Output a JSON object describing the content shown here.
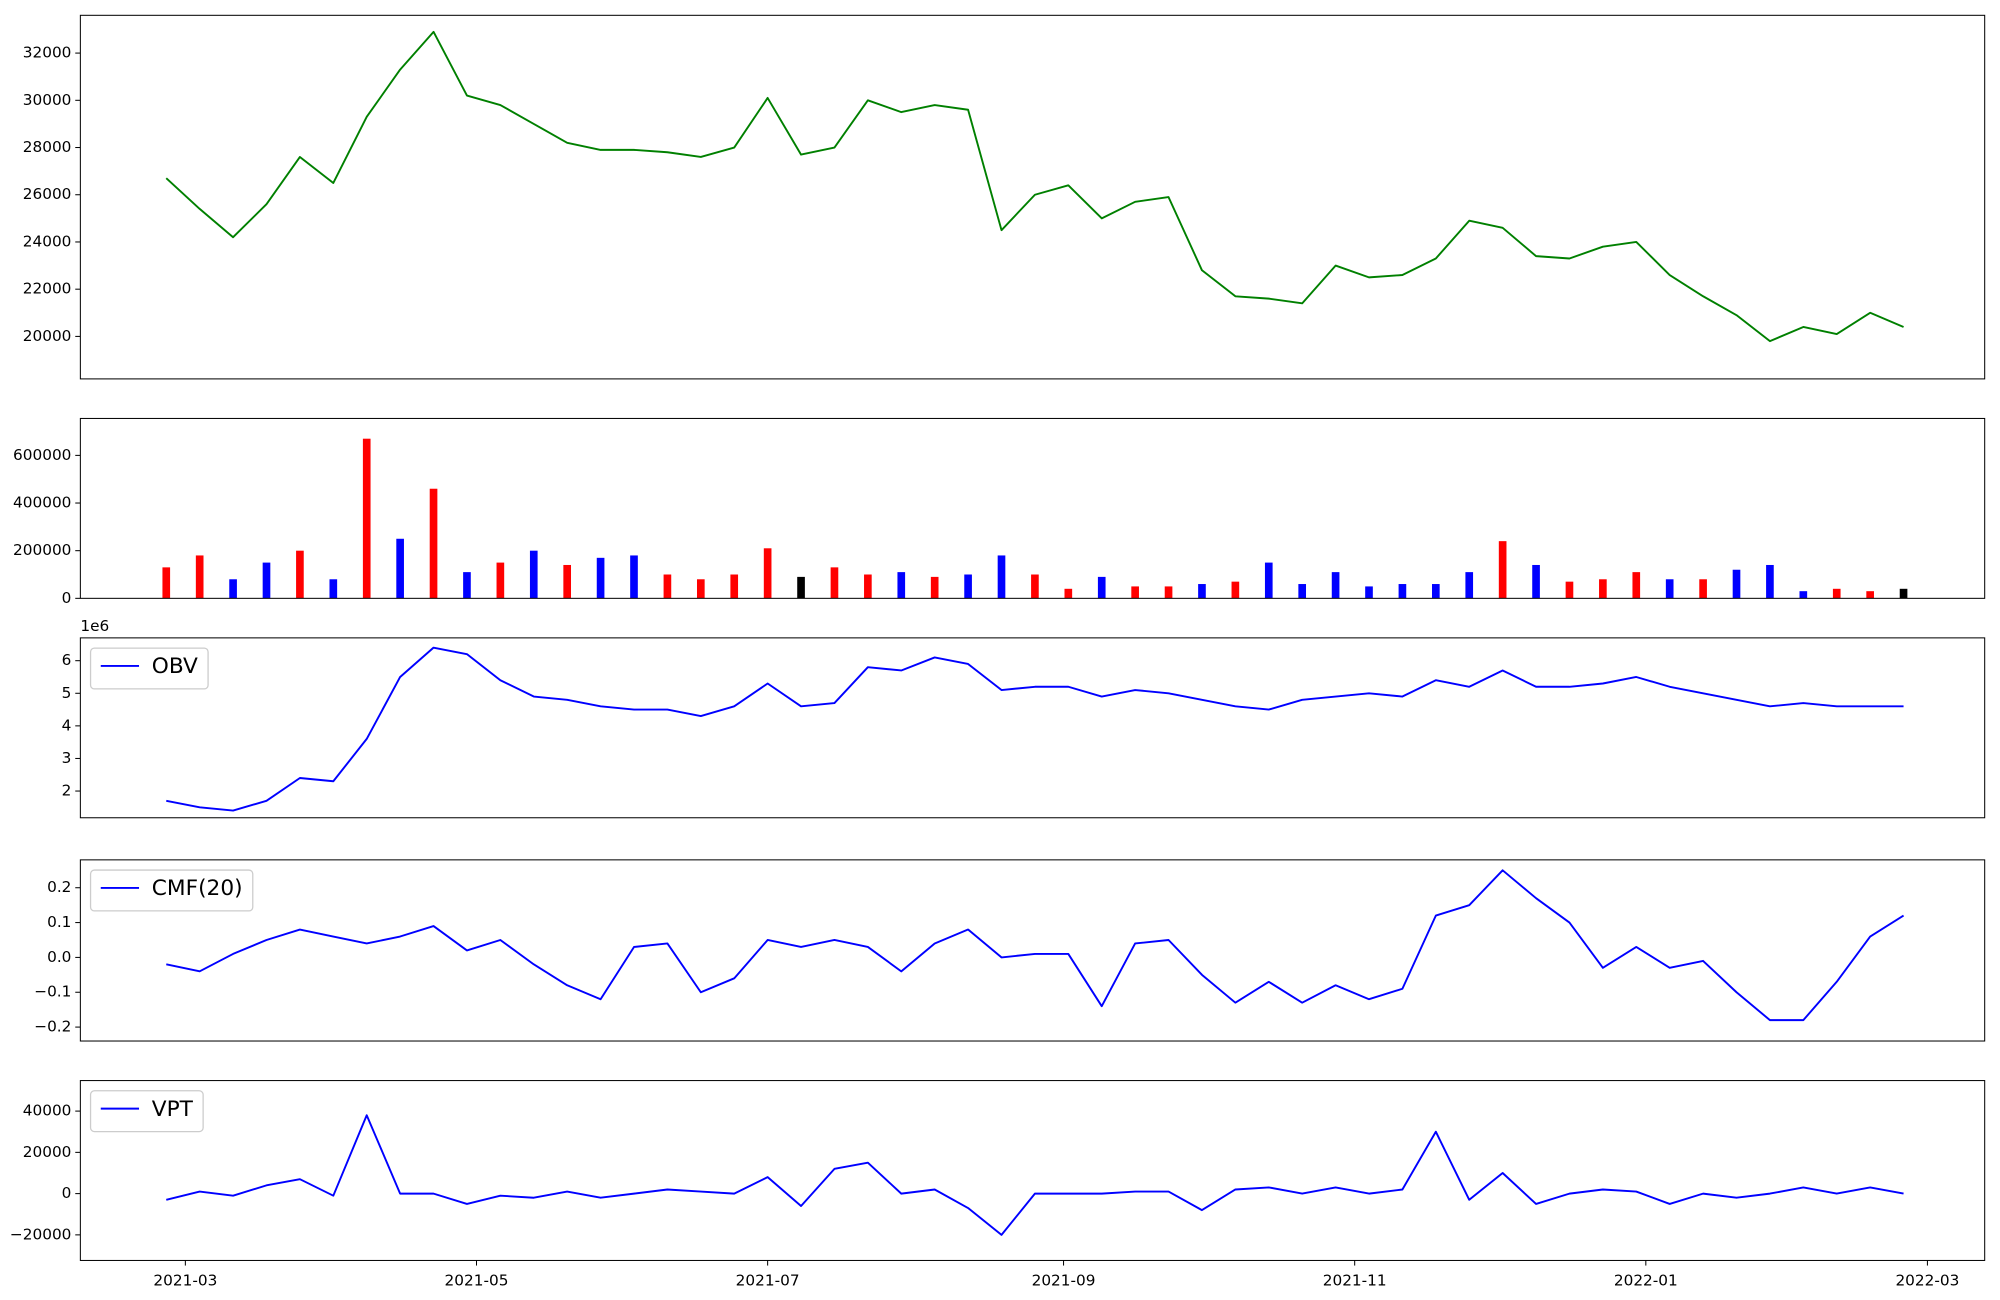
{
  "chart_data": [
    {
      "type": "line",
      "color": "#008000",
      "x": [
        18683,
        18690,
        18697,
        18704,
        18711,
        18718,
        18725,
        18732,
        18739,
        18746,
        18753,
        18760,
        18767,
        18774,
        18781,
        18788,
        18795,
        18802,
        18809,
        18816,
        18823,
        18830,
        18837,
        18844,
        18851,
        18858,
        18865,
        18872,
        18879,
        18886,
        18893,
        18900,
        18907,
        18914,
        18921,
        18928,
        18935,
        18942,
        18949,
        18956,
        18963,
        18970,
        18977,
        18984,
        18991,
        18998,
        19005,
        19012,
        19019,
        19026,
        19033,
        19040,
        19047
      ],
      "values": [
        26700,
        25400,
        24200,
        25600,
        27600,
        26500,
        29300,
        31300,
        32900,
        30200,
        29800,
        29000,
        28200,
        27900,
        27900,
        27800,
        27600,
        28000,
        30100,
        27700,
        28000,
        30000,
        29500,
        29800,
        29600,
        24500,
        26000,
        26400,
        25000,
        25700,
        25900,
        22800,
        21700,
        21600,
        21400,
        23000,
        22500,
        22600,
        23300,
        24900,
        24600,
        23400,
        23300,
        23800,
        24000,
        22600,
        21700,
        20900,
        19800,
        20400,
        20100,
        21000,
        20400
      ],
      "xlim": [
        18665,
        19064
      ],
      "ylim": [
        18200,
        33600
      ],
      "yticks": [
        20000,
        22000,
        24000,
        26000,
        28000,
        30000,
        32000
      ]
    },
    {
      "type": "bar",
      "x": [
        18683,
        18690,
        18697,
        18704,
        18711,
        18718,
        18725,
        18732,
        18739,
        18746,
        18753,
        18760,
        18767,
        18774,
        18781,
        18788,
        18795,
        18802,
        18809,
        18816,
        18823,
        18830,
        18837,
        18844,
        18851,
        18858,
        18865,
        18872,
        18879,
        18886,
        18893,
        18900,
        18907,
        18914,
        18921,
        18928,
        18935,
        18942,
        18949,
        18956,
        18963,
        18970,
        18977,
        18984,
        18991,
        18998,
        19005,
        19012,
        19019,
        19026,
        19033,
        19040,
        19047
      ],
      "values": [
        130000,
        180000,
        80000,
        150000,
        200000,
        80000,
        670000,
        250000,
        460000,
        110000,
        150000,
        200000,
        140000,
        170000,
        180000,
        100000,
        80000,
        100000,
        210000,
        90000,
        130000,
        100000,
        110000,
        90000,
        100000,
        180000,
        100000,
        40000,
        90000,
        50000,
        50000,
        60000,
        70000,
        150000,
        60000,
        110000,
        50000,
        60000,
        60000,
        110000,
        240000,
        140000,
        70000,
        80000,
        110000,
        80000,
        80000,
        120000,
        140000,
        30000,
        40000,
        30000,
        40000
      ],
      "colors": [
        "red",
        "red",
        "blue",
        "blue",
        "red",
        "blue",
        "red",
        "blue",
        "red",
        "blue",
        "red",
        "blue",
        "red",
        "blue",
        "blue",
        "red",
        "red",
        "red",
        "red",
        "black",
        "red",
        "red",
        "blue",
        "red",
        "blue",
        "blue",
        "red",
        "red",
        "blue",
        "red",
        "red",
        "blue",
        "red",
        "blue",
        "blue",
        "blue",
        "blue",
        "blue",
        "blue",
        "blue",
        "red",
        "blue",
        "red",
        "red",
        "red",
        "blue",
        "red",
        "blue",
        "blue",
        "blue",
        "red",
        "red",
        "black"
      ],
      "xlim": [
        18665,
        19064
      ],
      "ylim": [
        0,
        755000
      ],
      "yticks": [
        0,
        200000,
        400000,
        600000
      ]
    },
    {
      "type": "line",
      "y_offset_label": "1e6",
      "x": [
        18683,
        18690,
        18697,
        18704,
        18711,
        18718,
        18725,
        18732,
        18739,
        18746,
        18753,
        18760,
        18767,
        18774,
        18781,
        18788,
        18795,
        18802,
        18809,
        18816,
        18823,
        18830,
        18837,
        18844,
        18851,
        18858,
        18865,
        18872,
        18879,
        18886,
        18893,
        18900,
        18907,
        18914,
        18921,
        18928,
        18935,
        18942,
        18949,
        18956,
        18963,
        18970,
        18977,
        18984,
        18991,
        18998,
        19005,
        19012,
        19019,
        19026,
        19033,
        19040,
        19047
      ],
      "series": [
        {
          "name": "OBV",
          "color": "#0000ff",
          "values": [
            1.7,
            1.5,
            1.4,
            1.7,
            2.4,
            2.3,
            3.6,
            5.5,
            6.4,
            6.2,
            5.4,
            4.9,
            4.8,
            4.6,
            4.5,
            4.5,
            4.3,
            4.6,
            5.3,
            4.6,
            4.7,
            5.8,
            5.7,
            6.1,
            5.9,
            5.1,
            5.2,
            5.2,
            4.9,
            5.1,
            5.0,
            4.8,
            4.6,
            4.5,
            4.8,
            4.9,
            5.0,
            4.9,
            5.4,
            5.2,
            5.7,
            5.2,
            5.2,
            5.3,
            5.5,
            5.2,
            5.0,
            4.8,
            4.6,
            4.7,
            4.6,
            4.6,
            4.6
          ]
        }
      ],
      "xlim": [
        18665,
        19064
      ],
      "ylim": [
        1.18,
        6.7
      ],
      "yticks": [
        2,
        3,
        4,
        5,
        6
      ]
    },
    {
      "type": "line",
      "x": [
        18683,
        18690,
        18697,
        18704,
        18711,
        18718,
        18725,
        18732,
        18739,
        18746,
        18753,
        18760,
        18767,
        18774,
        18781,
        18788,
        18795,
        18802,
        18809,
        18816,
        18823,
        18830,
        18837,
        18844,
        18851,
        18858,
        18865,
        18872,
        18879,
        18886,
        18893,
        18900,
        18907,
        18914,
        18921,
        18928,
        18935,
        18942,
        18949,
        18956,
        18963,
        18970,
        18977,
        18984,
        18991,
        18998,
        19005,
        19012,
        19019,
        19026,
        19033,
        19040,
        19047
      ],
      "series": [
        {
          "name": "CMF(20)",
          "color": "#0000ff",
          "values": [
            -0.02,
            -0.04,
            0.01,
            0.05,
            0.08,
            0.06,
            0.04,
            0.06,
            0.09,
            0.02,
            0.05,
            -0.02,
            -0.08,
            -0.12,
            0.03,
            0.04,
            -0.1,
            -0.06,
            0.05,
            0.03,
            0.05,
            0.03,
            -0.04,
            0.04,
            0.08,
            0,
            0.01,
            0.01,
            -0.14,
            0.04,
            0.05,
            -0.05,
            -0.13,
            -0.07,
            -0.13,
            -0.08,
            -0.12,
            -0.09,
            0.12,
            0.15,
            0.25,
            0.17,
            0.1,
            -0.03,
            0.03,
            -0.03,
            -0.01,
            -0.1,
            -0.18,
            -0.18,
            -0.07,
            0.06,
            0.12
          ]
        }
      ],
      "xlim": [
        18665,
        19064
      ],
      "ylim": [
        -0.24,
        0.28
      ],
      "yticks": [
        {
          "value": -0.2,
          "label": "−0.2"
        },
        {
          "value": -0.1,
          "label": "−0.1"
        },
        {
          "value": 0,
          "label": "0.0"
        },
        0.1,
        0.2
      ]
    },
    {
      "type": "line",
      "x": [
        18683,
        18690,
        18697,
        18704,
        18711,
        18718,
        18725,
        18732,
        18739,
        18746,
        18753,
        18760,
        18767,
        18774,
        18781,
        18788,
        18795,
        18802,
        18809,
        18816,
        18823,
        18830,
        18837,
        18844,
        18851,
        18858,
        18865,
        18872,
        18879,
        18886,
        18893,
        18900,
        18907,
        18914,
        18921,
        18928,
        18935,
        18942,
        18949,
        18956,
        18963,
        18970,
        18977,
        18984,
        18991,
        18998,
        19005,
        19012,
        19019,
        19026,
        19033,
        19040,
        19047
      ],
      "series": [
        {
          "name": "VPT",
          "color": "#0000ff",
          "values": [
            -3000,
            1000,
            -1000,
            4000,
            7000,
            -1000,
            38000,
            0,
            0,
            -5000,
            -1000,
            -2000,
            1000,
            -2000,
            0,
            2000,
            1000,
            0,
            8000,
            -6000,
            12000,
            15000,
            0,
            2000,
            -7000,
            -20000,
            0,
            0,
            0,
            1000,
            1000,
            -8000,
            2000,
            3000,
            0,
            3000,
            0,
            2000,
            30000,
            -3000,
            10000,
            -5000,
            0,
            2000,
            1000,
            -5000,
            0,
            -2000,
            0,
            3000,
            0,
            3000,
            0
          ]
        }
      ],
      "xlim": [
        18665,
        19064
      ],
      "ylim": [
        -32400,
        54800
      ],
      "yticks": [
        {
          "value": -20000,
          "label": "−20000"
        },
        0,
        20000,
        40000
      ],
      "xticks": [
        {
          "value": 18687,
          "label": "2021-03"
        },
        {
          "value": 18748,
          "label": "2021-05"
        },
        {
          "value": 18809,
          "label": "2021-07"
        },
        {
          "value": 18871,
          "label": "2021-09"
        },
        {
          "value": 18932,
          "label": "2021-11"
        },
        {
          "value": 18993,
          "label": "2022-01"
        },
        {
          "value": 19052,
          "label": "2022-03"
        }
      ]
    }
  ]
}
